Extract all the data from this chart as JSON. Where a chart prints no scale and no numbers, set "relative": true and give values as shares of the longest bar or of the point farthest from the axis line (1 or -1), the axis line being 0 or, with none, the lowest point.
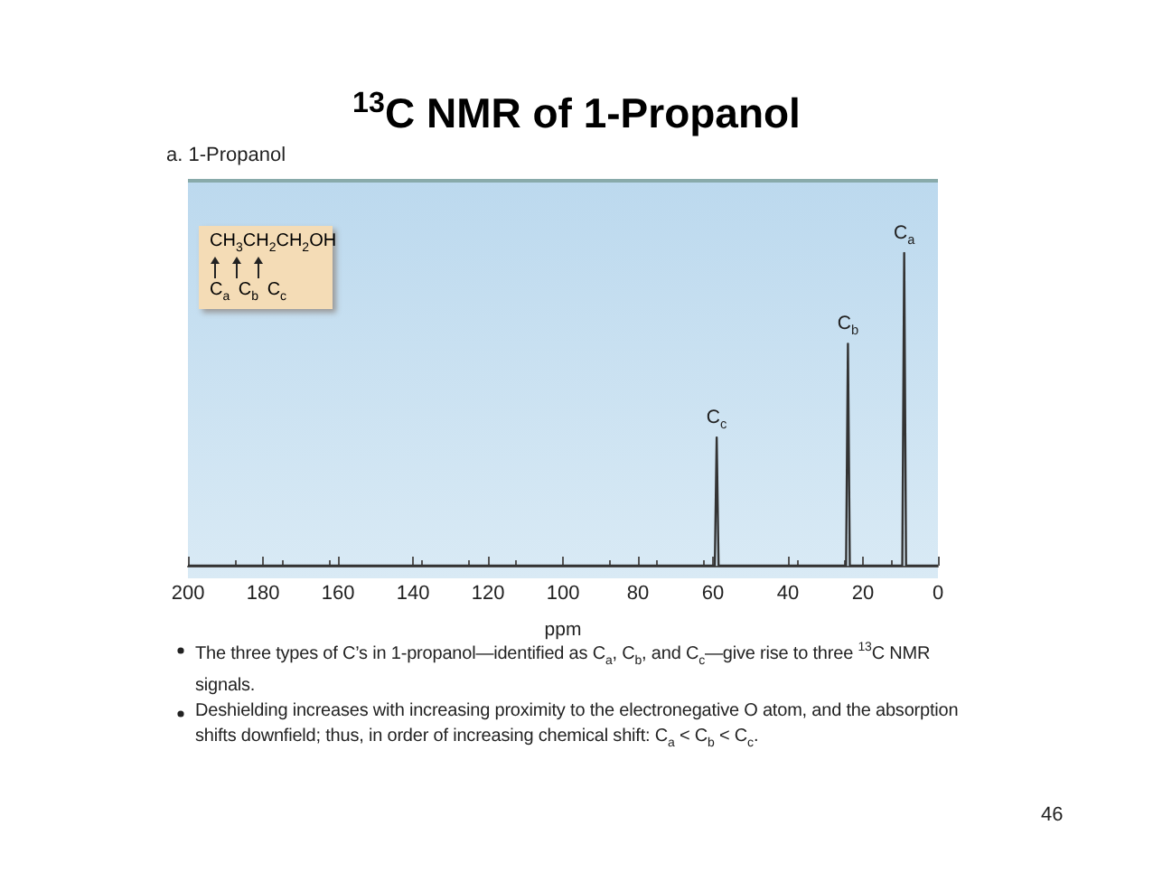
{
  "chart_data": {
    "type": "line",
    "title": "$^{13}$C NMR of 1-Propanol",
    "subtitle": "a. 1-Propanol",
    "xlabel": "ppm",
    "relative": true,
    "grid": false,
    "marker": "none",
    "line_style": "solid",
    "x": [
      200,
      59.5,
      59,
      58.5,
      24.5,
      24,
      23.5,
      9.5,
      9,
      8.5,
      0
    ],
    "values": [
      0,
      0,
      0.41,
      0,
      0,
      0.71,
      0,
      0,
      1,
      0,
      0
    ],
    "color": "#333333",
    "xlim": [
      200,
      0
    ],
    "xticks": [
      200,
      180,
      160,
      140,
      120,
      100,
      80,
      60,
      40,
      20,
      0
    ],
    "annotations": [
      {
        "text": "C$_{a}$",
        "x": 9,
        "y": 1
      },
      {
        "text": "C$_{b}$",
        "x": 24,
        "y": 0.71
      },
      {
        "text": "C$_{c}$",
        "x": 59,
        "y": 0.41
      },
      "CH$_{3}$CH$_{2}$CH$_{2}$OH",
      "C$_{a}$ C$_{b}$ C$_{c}$",
      "The three types of C’s in 1-propanol—identified as C$_{a}$, C$_{b}$, and C$_{c}$—give rise to three $^{13}$C NMR signals.",
      "Deshielding increases with increasing proximity to the electronegative O atom, and the absorption shifts downfield; thus, in order of increasing chemical shift: C$_{a}$ < C$_{b}$ < C$_{c}$.",
      "46"
    ]
  }
}
